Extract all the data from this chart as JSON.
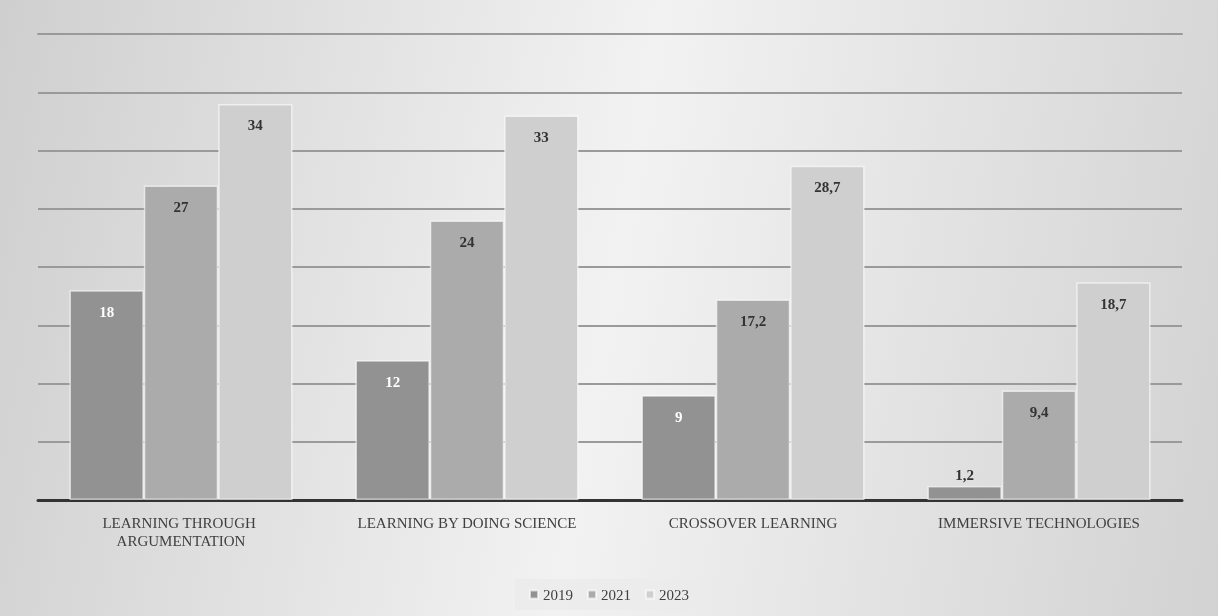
{
  "chart_data": {
    "type": "bar",
    "categories": [
      "LEARNING THROUGH ARGUMENTATION",
      "LEARNING BY DOING SCIENCE",
      "CROSSOVER LEARNING",
      "IMMERSIVE TECHNOLOGIES"
    ],
    "series": [
      {
        "name": "2019",
        "color": "#929292",
        "values": [
          18,
          12,
          9,
          1.2
        ],
        "value_labels": [
          "18",
          "12",
          "9",
          "1,2"
        ]
      },
      {
        "name": "2021",
        "color": "#ababab",
        "values": [
          27,
          24,
          17.2,
          9.4
        ],
        "value_labels": [
          "27",
          "24",
          "17,2",
          "9,4"
        ]
      },
      {
        "name": "2023",
        "color": "#cfcfcf",
        "values": [
          34,
          33,
          28.7,
          18.7
        ],
        "value_labels": [
          "34",
          "33",
          "28,7",
          "18,7"
        ]
      }
    ],
    "ylim": [
      0,
      40
    ],
    "yticks": [
      {
        "value": 0,
        "label": null
      },
      {
        "value": 5,
        "label": null
      },
      {
        "value": 10,
        "label": null
      },
      {
        "value": 15,
        "label": null
      },
      {
        "value": 20,
        "label": null
      },
      {
        "value": 25,
        "label": null
      },
      {
        "value": 30,
        "label": null
      },
      {
        "value": 35,
        "label": null
      }
    ],
    "grid": "y",
    "legend": "bottom",
    "tick_labels": "x"
  }
}
